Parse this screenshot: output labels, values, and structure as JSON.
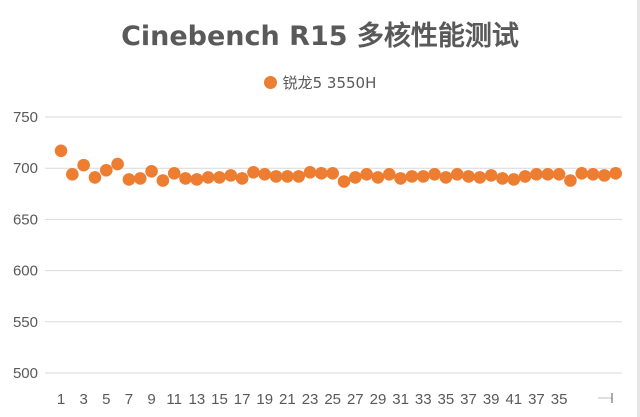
{
  "chart_data": {
    "type": "scatter",
    "title": "Cinebench R15 多核性能测试",
    "legend": {
      "position": "top",
      "entries": [
        "锐龙5 3550H"
      ]
    },
    "series": [
      {
        "name": "锐龙5 3550H",
        "color": "#ED7D31",
        "values": [
          717,
          694,
          703,
          691,
          698,
          704,
          689,
          690,
          697,
          688,
          695,
          690,
          689,
          691,
          691,
          693,
          690,
          696,
          694,
          692,
          692,
          692,
          696,
          695,
          695,
          687,
          691,
          694,
          691,
          694,
          690,
          692,
          692,
          694,
          691,
          694,
          692,
          691,
          693,
          690,
          689,
          692,
          694,
          694,
          694,
          688,
          695,
          694,
          693,
          695
        ]
      }
    ],
    "x_tick_labels": [
      "1",
      "3",
      "5",
      "7",
      "9",
      "11",
      "13",
      "15",
      "17",
      "19",
      "21",
      "23",
      "25",
      "27",
      "29",
      "31",
      "33",
      "35",
      "37",
      "39",
      "41",
      "37",
      "35"
    ],
    "y_ticks": [
      500,
      550,
      600,
      650,
      700,
      750
    ],
    "ylim": [
      500,
      750
    ],
    "grid": "horizontal",
    "gridline_color": "#d9d9d9"
  }
}
